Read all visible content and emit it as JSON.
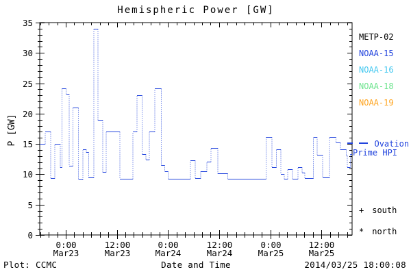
{
  "title": "Hemispheric Power [GW]",
  "footer": {
    "plot_credit": "Plot: CCMC",
    "axis_label": "Date and Time",
    "timestamp": "2014/03/25 18:00:08"
  },
  "legend": {
    "satellites": [
      {
        "label": "METP-02",
        "color": "#000000"
      },
      {
        "label": "NOAA-15",
        "color": "#2244dd"
      },
      {
        "label": "NOAA-16",
        "color": "#44c8f0"
      },
      {
        "label": "NOAA-18",
        "color": "#6de48e"
      },
      {
        "label": "NOAA-19",
        "color": "#ffa41e"
      }
    ],
    "ovation": {
      "line1": "Ovation",
      "line2": "Prime HPI",
      "color": "#2244dd"
    },
    "markers": [
      {
        "symbol": "+",
        "label": "south"
      },
      {
        "symbol": "*",
        "label": "north"
      }
    ]
  },
  "chart_data": {
    "type": "line",
    "title": "Hemispheric Power [GW]",
    "xlabel": "Date and Time",
    "ylabel": "P [GW]",
    "ylim": [
      0,
      35
    ],
    "y_major_step": 5,
    "y_minor_step": 1,
    "x_range_hours": [
      -6.1,
      67.2
    ],
    "x_hours_reference": "hours relative to 2014-03-23 00:00",
    "x_minor_step_hours": 2,
    "x_ticks": [
      {
        "hour": 0,
        "time": "0:00",
        "date": "Mar23"
      },
      {
        "hour": 12,
        "time": "12:00",
        "date": "Mar23"
      },
      {
        "hour": 24,
        "time": "0:00",
        "date": "Mar24"
      },
      {
        "hour": 36,
        "time": "12:00",
        "date": "Mar24"
      },
      {
        "hour": 48,
        "time": "0:00",
        "date": "Mar25"
      },
      {
        "hour": 60,
        "time": "12:00",
        "date": "Mar25"
      }
    ],
    "series_name": "Ovation Prime HPI",
    "line_color": "#2244dd",
    "line_style": "steps: solid horizontals, dotted verticals",
    "grid": false,
    "steps": [
      [
        -6.1,
        -4.8,
        15.0
      ],
      [
        -4.8,
        -3.5,
        17.0
      ],
      [
        -3.5,
        -2.6,
        9.4
      ],
      [
        -2.6,
        -1.3,
        15.0
      ],
      [
        -1.3,
        -0.9,
        11.2
      ],
      [
        -0.9,
        0.1,
        24.2
      ],
      [
        0.1,
        0.8,
        23.3
      ],
      [
        0.8,
        1.7,
        11.4
      ],
      [
        1.7,
        3.0,
        21.0
      ],
      [
        3.0,
        4.0,
        9.2
      ],
      [
        4.0,
        4.8,
        14.1
      ],
      [
        4.8,
        5.4,
        13.7
      ],
      [
        5.4,
        6.6,
        9.5
      ],
      [
        6.6,
        7.6,
        34.0
      ],
      [
        7.6,
        8.7,
        19.0
      ],
      [
        8.7,
        9.5,
        10.4
      ],
      [
        9.5,
        12.7,
        17.0
      ],
      [
        12.7,
        15.8,
        9.3
      ],
      [
        15.8,
        16.7,
        17.0
      ],
      [
        16.7,
        17.9,
        23.0
      ],
      [
        17.9,
        18.8,
        13.3
      ],
      [
        18.8,
        19.6,
        12.4
      ],
      [
        19.6,
        20.9,
        17.0
      ],
      [
        20.9,
        22.4,
        24.2
      ],
      [
        22.4,
        23.2,
        11.5
      ],
      [
        23.2,
        24.0,
        10.5
      ],
      [
        24.0,
        29.3,
        9.3
      ],
      [
        29.3,
        30.4,
        12.3
      ],
      [
        30.4,
        31.7,
        9.4
      ],
      [
        31.7,
        33.1,
        10.5
      ],
      [
        33.1,
        34.1,
        12.1
      ],
      [
        34.1,
        35.7,
        14.3
      ],
      [
        35.7,
        38.0,
        10.2
      ],
      [
        38.0,
        47.0,
        9.3
      ],
      [
        47.0,
        48.4,
        16.2
      ],
      [
        48.4,
        49.4,
        11.2
      ],
      [
        49.4,
        50.5,
        14.1
      ],
      [
        50.5,
        51.3,
        10.1
      ],
      [
        51.3,
        52.1,
        9.3
      ],
      [
        52.1,
        53.2,
        10.8
      ],
      [
        53.2,
        54.5,
        9.3
      ],
      [
        54.5,
        55.5,
        11.2
      ],
      [
        55.5,
        56.1,
        10.3
      ],
      [
        56.1,
        58.1,
        9.4
      ],
      [
        58.1,
        59.0,
        16.2
      ],
      [
        59.0,
        60.3,
        13.2
      ],
      [
        60.3,
        61.9,
        9.5
      ],
      [
        61.9,
        63.4,
        16.2
      ],
      [
        63.4,
        64.5,
        15.2
      ],
      [
        64.5,
        65.8,
        14.1
      ],
      [
        65.8,
        66.1,
        13.1
      ],
      [
        66.1,
        66.8,
        11.2
      ],
      [
        66.8,
        67.2,
        13.3
      ]
    ]
  }
}
